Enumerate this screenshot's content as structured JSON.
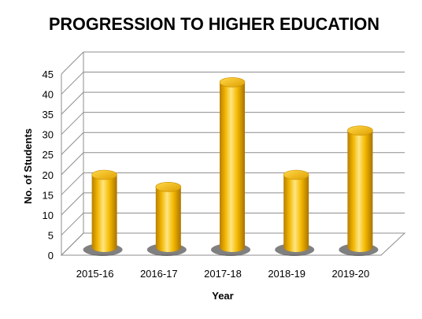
{
  "chart_data": {
    "type": "bar",
    "title": "PROGRESSION TO HIGHER EDUCATION",
    "xlabel": "Year",
    "ylabel": "No. of Students",
    "categories": [
      "2015-16",
      "2016-17",
      "2017-18",
      "2018-19",
      "2019-20"
    ],
    "values": [
      18,
      15,
      41,
      18,
      29
    ],
    "ylim": [
      0,
      45
    ],
    "yticks": [
      "0",
      "5",
      "10",
      "15",
      "20",
      "25",
      "30",
      "35",
      "40",
      "45"
    ],
    "grid": true,
    "style": "3d-cylinder",
    "bar_color": "#F5B800",
    "legend": "none"
  }
}
